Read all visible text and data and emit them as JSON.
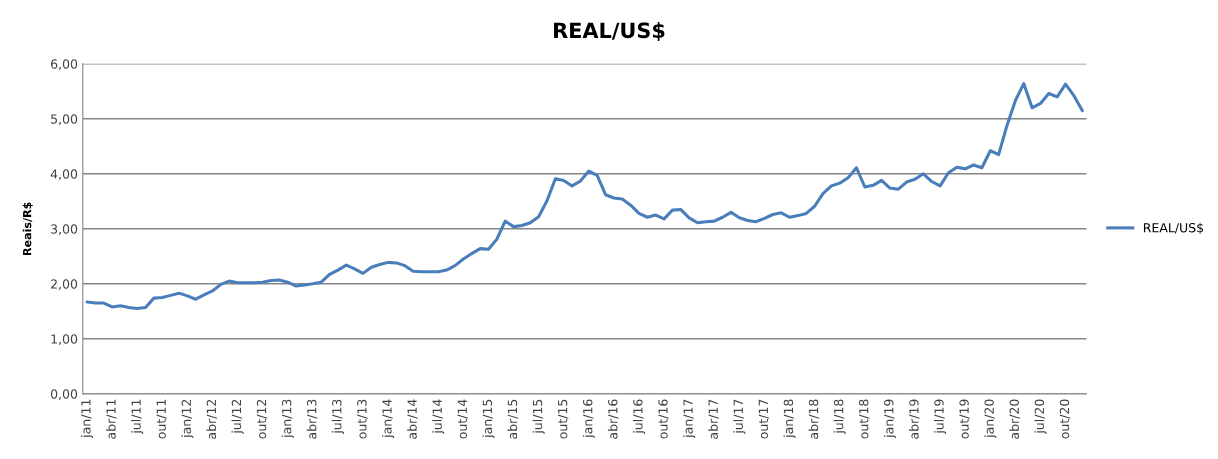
{
  "chart_data": {
    "type": "line",
    "title": "REAL/US$",
    "ylabel": "Reais/R$",
    "categories": [
      "jan/11",
      null,
      null,
      "abr/11",
      null,
      null,
      "jul/11",
      null,
      null,
      "out/11",
      null,
      null,
      "jan/12",
      null,
      null,
      "abr/12",
      null,
      null,
      "jul/12",
      null,
      null,
      "out/12",
      null,
      null,
      "jan/13",
      null,
      null,
      "abr/13",
      null,
      null,
      "jul/13",
      null,
      null,
      "out/13",
      null,
      null,
      "jan/14",
      null,
      null,
      "abr/14",
      null,
      null,
      "jul/14",
      null,
      null,
      "out/14",
      null,
      null,
      "jan/15",
      null,
      null,
      "abr/15",
      null,
      null,
      "jul/15",
      null,
      null,
      "out/15",
      null,
      null,
      "jan/16",
      null,
      null,
      "abr/16",
      null,
      null,
      "jul/16",
      null,
      null,
      "out/16",
      null,
      null,
      "jan/17",
      null,
      null,
      "abr/17",
      null,
      null,
      "jul/17",
      null,
      null,
      "out/17",
      null,
      null,
      "jan/18",
      null,
      null,
      "abr/18",
      null,
      null,
      "jul/18",
      null,
      null,
      "out/18",
      null,
      null,
      "jan/19",
      null,
      null,
      "abr/19",
      null,
      null,
      "jul/19",
      null,
      null,
      "out/19",
      null,
      null,
      "jan/20",
      null,
      null,
      "abr/20",
      null,
      null,
      "jul/20",
      null,
      null,
      "out/20",
      null,
      null
    ],
    "series": [
      {
        "name": "REAL/US$",
        "color": "#4a7ebb",
        "values": [
          1.67,
          1.65,
          1.65,
          1.58,
          1.6,
          1.57,
          1.55,
          1.57,
          1.74,
          1.75,
          1.79,
          1.83,
          1.78,
          1.72,
          1.8,
          1.87,
          1.99,
          2.05,
          2.02,
          2.02,
          2.02,
          2.03,
          2.06,
          2.07,
          2.03,
          1.96,
          1.98,
          2.0,
          2.03,
          2.17,
          2.25,
          2.34,
          2.27,
          2.19,
          2.3,
          2.35,
          2.39,
          2.38,
          2.33,
          2.23,
          2.22,
          2.22,
          2.22,
          2.25,
          2.33,
          2.45,
          2.55,
          2.64,
          2.63,
          2.81,
          3.14,
          3.04,
          3.06,
          3.11,
          3.22,
          3.51,
          3.91,
          3.88,
          3.78,
          3.87,
          4.05,
          3.97,
          3.62,
          3.56,
          3.54,
          3.43,
          3.28,
          3.21,
          3.25,
          3.18,
          3.34,
          3.35,
          3.2,
          3.11,
          3.13,
          3.14,
          3.21,
          3.3,
          3.2,
          3.15,
          3.13,
          3.19,
          3.26,
          3.29,
          3.21,
          3.24,
          3.28,
          3.41,
          3.64,
          3.78,
          3.83,
          3.93,
          4.11,
          3.76,
          3.79,
          3.88,
          3.74,
          3.72,
          3.85,
          3.9,
          4.0,
          3.86,
          3.78,
          4.02,
          4.12,
          4.09,
          4.16,
          4.11,
          4.42,
          4.35,
          4.88,
          5.33,
          5.64,
          5.2,
          5.28,
          5.46,
          5.4,
          5.63,
          5.42,
          5.15
        ]
      }
    ],
    "ylim": [
      0,
      6
    ],
    "yticks": [
      {
        "value": 0,
        "label": "0,00"
      },
      {
        "value": 1,
        "label": "1,00"
      },
      {
        "value": 2,
        "label": "2,00"
      },
      {
        "value": 3,
        "label": "3,00"
      },
      {
        "value": 4,
        "label": "4,00"
      },
      {
        "value": 5,
        "label": "5,00"
      },
      {
        "value": 6,
        "label": "6,00"
      }
    ],
    "grid": "y",
    "legend": "right",
    "marker": "none",
    "line_style": "solid"
  }
}
